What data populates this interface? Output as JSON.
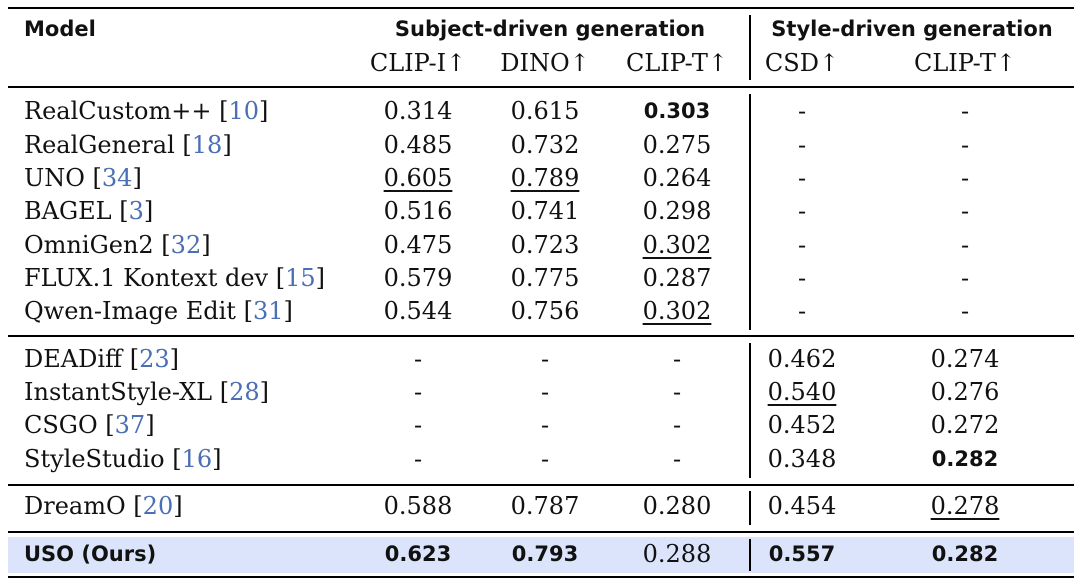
{
  "header": {
    "model": "Model",
    "group_subject": "Subject-driven generation",
    "group_style": "Style-driven generation",
    "metrics": [
      "CLIP-I↑",
      "DINO↑",
      "CLIP-T↑",
      "CSD↑",
      "CLIP-T↑"
    ]
  },
  "rows": [
    {
      "name": "RealCustom++ ",
      "ref": "10",
      "cells": [
        "0.314",
        "0.615",
        "0.303",
        "-",
        "-"
      ],
      "bold": [
        2
      ],
      "underline": []
    },
    {
      "name": "RealGeneral ",
      "ref": "18",
      "cells": [
        "0.485",
        "0.732",
        "0.275",
        "-",
        "-"
      ],
      "bold": [],
      "underline": []
    },
    {
      "name": "UNO ",
      "ref": "34",
      "cells": [
        "0.605",
        "0.789",
        "0.264",
        "-",
        "-"
      ],
      "bold": [],
      "underline": [
        0,
        1
      ]
    },
    {
      "name": "BAGEL ",
      "ref": "3",
      "cells": [
        "0.516",
        "0.741",
        "0.298",
        "-",
        "-"
      ],
      "bold": [],
      "underline": []
    },
    {
      "name": "OmniGen2 ",
      "ref": "32",
      "cells": [
        "0.475",
        "0.723",
        "0.302",
        "-",
        "-"
      ],
      "bold": [],
      "underline": [
        2
      ]
    },
    {
      "name": "FLUX.1 Kontext dev ",
      "ref": "15",
      "cells": [
        "0.579",
        "0.775",
        "0.287",
        "-",
        "-"
      ],
      "bold": [],
      "underline": []
    },
    {
      "name": "Qwen-Image Edit ",
      "ref": "31",
      "cells": [
        "0.544",
        "0.756",
        "0.302",
        "-",
        "-"
      ],
      "bold": [],
      "underline": [
        2
      ]
    },
    {
      "name": "DEADiff ",
      "ref": "23",
      "cells": [
        "-",
        "-",
        "-",
        "0.462",
        "0.274"
      ],
      "bold": [],
      "underline": []
    },
    {
      "name": "InstantStyle-XL ",
      "ref": "28",
      "cells": [
        "-",
        "-",
        "-",
        "0.540",
        "0.276"
      ],
      "bold": [],
      "underline": [
        3
      ]
    },
    {
      "name": "CSGO ",
      "ref": "37",
      "cells": [
        "-",
        "-",
        "-",
        "0.452",
        "0.272"
      ],
      "bold": [],
      "underline": []
    },
    {
      "name": "StyleStudio ",
      "ref": "16",
      "cells": [
        "-",
        "-",
        "-",
        "0.348",
        "0.282"
      ],
      "bold": [
        4
      ],
      "underline": []
    },
    {
      "name": "DreamO ",
      "ref": "20",
      "cells": [
        "0.588",
        "0.787",
        "0.280",
        "0.454",
        "0.278"
      ],
      "bold": [],
      "underline": [
        4
      ]
    },
    {
      "name": "USO (Ours)",
      "ref": "",
      "cells": [
        "0.623",
        "0.793",
        "0.288",
        "0.557",
        "0.282"
      ],
      "bold": [
        0,
        1,
        3,
        4
      ],
      "underline": [],
      "name_bold": true,
      "highlight": true
    }
  ]
}
